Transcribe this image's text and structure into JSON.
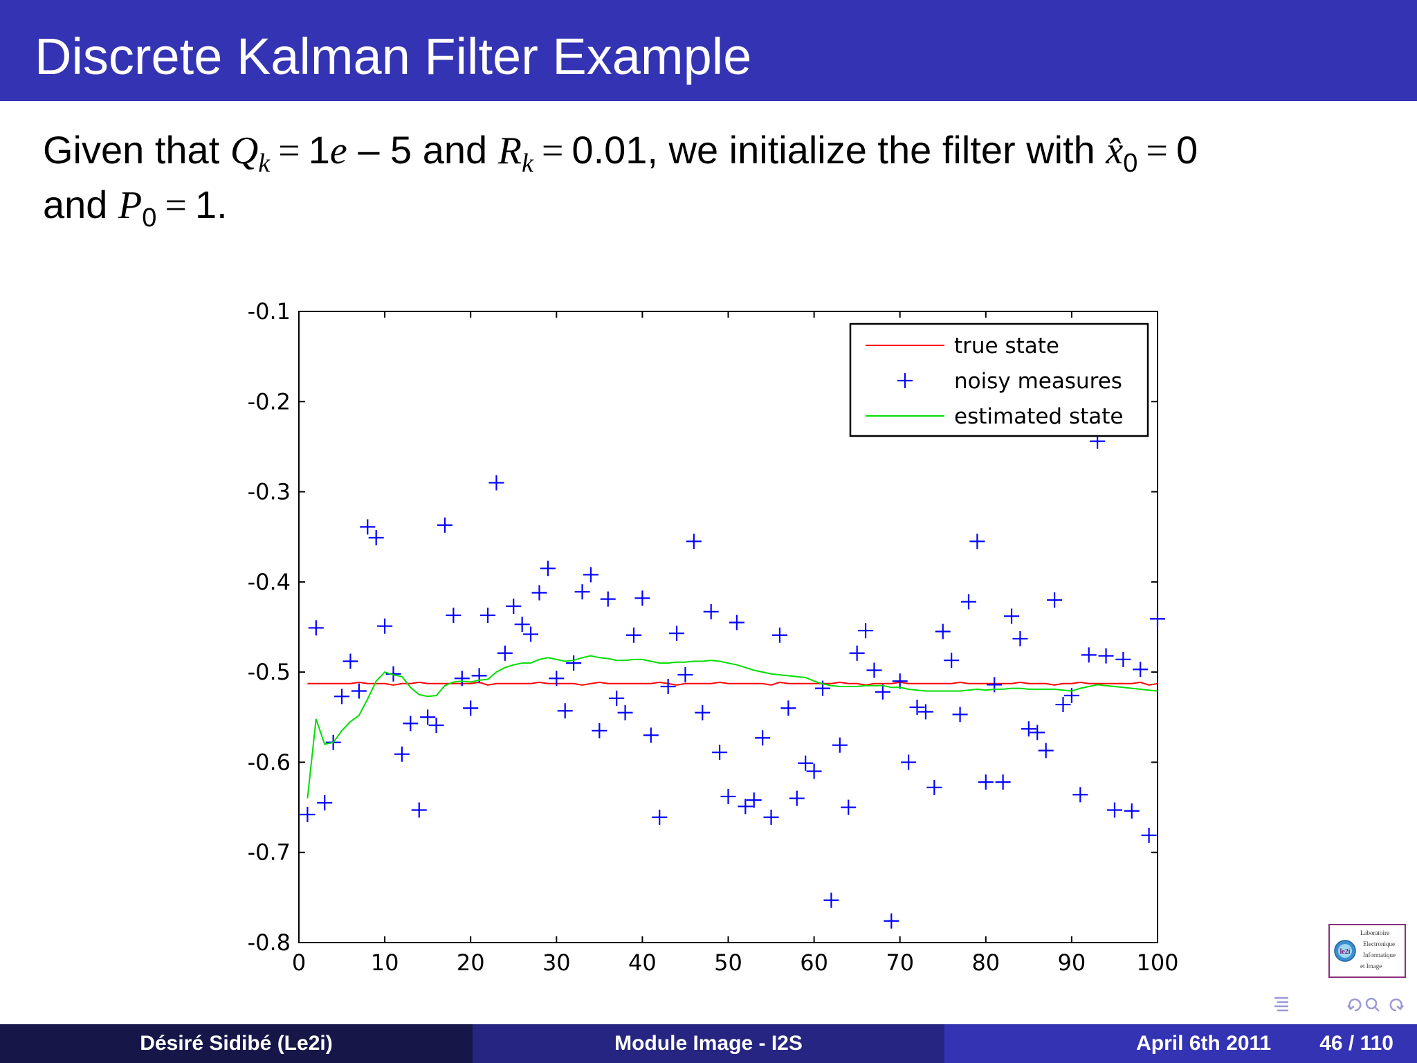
{
  "slide": {
    "title": "Discrete Kalman Filter Example",
    "text": {
      "given_that": "Given that",
      "q_symbol": "Q",
      "q_sub": "k",
      "q_value": "1",
      "q_e": "e",
      "q_rest": "– 5 and",
      "r_symbol": "R",
      "r_sub": "k",
      "r_value": "0.01, we initialize the filter with",
      "x_symbol": "x̂",
      "x_sub": "0",
      "x_value": "0",
      "and": "and",
      "p_symbol": "P",
      "p_sub": "0",
      "p_value": "1."
    }
  },
  "chart_data": {
    "type": "line",
    "title": "",
    "xlabel": "",
    "ylabel": "",
    "xlim": [
      0,
      100
    ],
    "ylim": [
      -0.8,
      -0.1
    ],
    "xticks": [
      0,
      10,
      20,
      30,
      40,
      50,
      60,
      70,
      80,
      90,
      100
    ],
    "yticks": [
      -0.8,
      -0.7,
      -0.6,
      -0.5,
      -0.4,
      -0.3,
      -0.2,
      -0.1
    ],
    "xtick_labels": [
      "0",
      "10",
      "20",
      "30",
      "40",
      "50",
      "60",
      "70",
      "80",
      "90",
      "100"
    ],
    "ytick_labels": [
      "-0.8",
      "-0.7",
      "-0.6",
      "-0.5",
      "-0.4",
      "-0.3",
      "-0.2",
      "-0.1"
    ],
    "grid": false,
    "legend_position": "top-right",
    "series": [
      {
        "name": "true state",
        "kind": "line",
        "color": "#ff0000",
        "value": -0.5128
      },
      {
        "name": "noisy measures",
        "kind": "scatter",
        "marker": "+",
        "color": "#0000ff",
        "x": [
          1,
          2,
          3,
          4,
          5,
          6,
          7,
          8,
          9,
          10,
          11,
          12,
          13,
          14,
          15,
          16,
          17,
          18,
          19,
          20,
          21,
          22,
          23,
          24,
          25,
          26,
          27,
          28,
          29,
          30,
          31,
          32,
          33,
          34,
          35,
          36,
          37,
          38,
          39,
          40,
          41,
          42,
          43,
          44,
          45,
          46,
          47,
          48,
          49,
          50,
          51,
          52,
          53,
          54,
          55,
          56,
          57,
          58,
          59,
          60,
          61,
          62,
          63,
          64,
          65,
          66,
          67,
          68,
          69,
          70,
          71,
          72,
          73,
          74,
          75,
          76,
          77,
          78,
          79,
          80,
          81,
          82,
          83,
          84,
          85,
          86,
          87,
          88,
          89,
          90,
          91,
          92,
          93,
          94,
          95,
          96,
          97,
          98,
          99,
          100
        ],
        "y": [
          -0.658,
          -0.451,
          -0.645,
          -0.578,
          -0.527,
          -0.488,
          -0.521,
          -0.339,
          -0.351,
          -0.449,
          -0.502,
          -0.591,
          -0.557,
          -0.653,
          -0.55,
          -0.559,
          -0.337,
          -0.437,
          -0.507,
          -0.54,
          -0.504,
          -0.437,
          -0.29,
          -0.479,
          -0.427,
          -0.447,
          -0.458,
          -0.412,
          -0.385,
          -0.507,
          -0.543,
          -0.49,
          -0.411,
          -0.392,
          -0.565,
          -0.419,
          -0.529,
          -0.545,
          -0.459,
          -0.418,
          -0.57,
          -0.661,
          -0.516,
          -0.457,
          -0.503,
          -0.355,
          -0.545,
          -0.433,
          -0.589,
          -0.638,
          -0.445,
          -0.649,
          -0.642,
          -0.573,
          -0.661,
          -0.459,
          -0.54,
          -0.64,
          -0.601,
          -0.61,
          -0.518,
          -0.753,
          -0.581,
          -0.65,
          -0.479,
          -0.454,
          -0.498,
          -0.522,
          -0.776,
          -0.51,
          -0.6,
          -0.539,
          -0.544,
          -0.628,
          -0.455,
          -0.487,
          -0.547,
          -0.422,
          -0.355,
          -0.622,
          -0.514,
          -0.622,
          -0.438,
          -0.463,
          -0.563,
          -0.567,
          -0.587,
          -0.42,
          -0.536,
          -0.526,
          -0.636,
          -0.481,
          -0.244,
          -0.482,
          -0.653,
          -0.486,
          -0.654,
          -0.497,
          -0.681,
          -0.441
        ]
      },
      {
        "name": "estimated state",
        "kind": "line",
        "color": "#00dd00",
        "x": [
          1,
          2,
          3,
          4,
          5,
          6,
          7,
          8,
          9,
          10,
          11,
          12,
          13,
          14,
          15,
          16,
          17,
          18,
          19,
          20,
          21,
          22,
          23,
          24,
          25,
          26,
          27,
          28,
          29,
          30,
          31,
          32,
          33,
          34,
          35,
          36,
          37,
          38,
          39,
          40,
          41,
          42,
          43,
          44,
          45,
          46,
          47,
          48,
          49,
          50,
          51,
          52,
          53,
          54,
          55,
          56,
          57,
          58,
          59,
          60,
          61,
          62,
          63,
          64,
          65,
          66,
          67,
          68,
          69,
          70,
          71,
          72,
          73,
          74,
          75,
          76,
          77,
          78,
          79,
          80,
          81,
          82,
          83,
          84,
          85,
          86,
          87,
          88,
          89,
          90,
          91,
          92,
          93,
          94,
          95,
          96,
          97,
          98,
          99,
          100
        ],
        "y": [
          -0.64,
          -0.552,
          -0.58,
          -0.578,
          -0.565,
          -0.555,
          -0.548,
          -0.53,
          -0.51,
          -0.5,
          -0.503,
          -0.505,
          -0.517,
          -0.525,
          -0.527,
          -0.526,
          -0.515,
          -0.511,
          -0.51,
          -0.511,
          -0.509,
          -0.508,
          -0.5,
          -0.495,
          -0.492,
          -0.49,
          -0.49,
          -0.486,
          -0.484,
          -0.486,
          -0.488,
          -0.487,
          -0.484,
          -0.482,
          -0.484,
          -0.485,
          -0.487,
          -0.487,
          -0.486,
          -0.486,
          -0.488,
          -0.49,
          -0.49,
          -0.489,
          -0.489,
          -0.488,
          -0.488,
          -0.487,
          -0.488,
          -0.49,
          -0.492,
          -0.495,
          -0.498,
          -0.5,
          -0.502,
          -0.503,
          -0.504,
          -0.505,
          -0.506,
          -0.51,
          -0.513,
          -0.515,
          -0.516,
          -0.516,
          -0.516,
          -0.515,
          -0.515,
          -0.515,
          -0.517,
          -0.517,
          -0.519,
          -0.52,
          -0.521,
          -0.521,
          -0.521,
          -0.521,
          -0.521,
          -0.52,
          -0.519,
          -0.52,
          -0.519,
          -0.519,
          -0.518,
          -0.518,
          -0.519,
          -0.519,
          -0.519,
          -0.519,
          -0.52,
          -0.521,
          -0.518,
          -0.516,
          -0.514,
          -0.515,
          -0.516,
          -0.517,
          -0.518,
          -0.519,
          -0.52,
          -0.521
        ]
      }
    ]
  },
  "logo": {
    "mark": "le2i",
    "lines": [
      "Laboratoire",
      "Electronique",
      "Informatique",
      "et Image"
    ]
  },
  "nav": {
    "icons": [
      "align-icon",
      "undo-icon",
      "zoom-icon",
      "redo-icon"
    ]
  },
  "footer": {
    "author": "Désiré Sidibé  (Le2i)",
    "course": "Module Image - I2S",
    "date": "April 6th 2011",
    "page": "46 / 110"
  }
}
